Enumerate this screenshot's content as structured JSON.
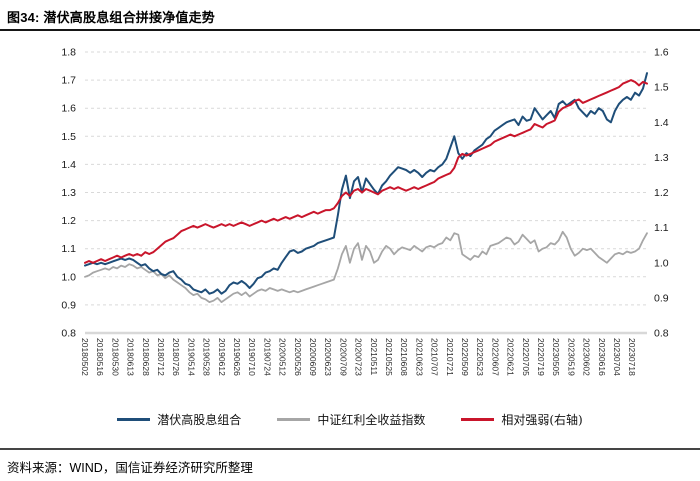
{
  "figure": {
    "title": "图34: 潜伏高股息组合拼接净值走势",
    "source": "资料来源：WIND，国信证券经济研究所整理"
  },
  "chart_data": {
    "type": "line",
    "title": "潜伏高股息组合拼接净值走势",
    "grid": "dashed-horizontal",
    "legend_position": "bottom",
    "left_axis": {
      "min": 0.8,
      "max": 1.8,
      "ticks": [
        "1.8",
        "1.7",
        "1.6",
        "1.5",
        "1.4",
        "1.3",
        "1.2",
        "1.1",
        "1.0",
        "0.9",
        "0.8"
      ]
    },
    "right_axis": {
      "min": 0.8,
      "max": 1.6,
      "ticks": [
        "1.6",
        "1.5",
        "1.4",
        "1.3",
        "1.2",
        "1.1",
        "1.0",
        "0.9",
        "0.8"
      ]
    },
    "x_tick_labels": [
      "20180502",
      "20180516",
      "20180530",
      "20180613",
      "20180628",
      "20180712",
      "20180726",
      "20190514",
      "20190528",
      "20190612",
      "20190626",
      "20190710",
      "20190724",
      "20200512",
      "20200526",
      "20200609",
      "20200623",
      "20200709",
      "20200723",
      "20210511",
      "20210525",
      "20210608",
      "20210623",
      "20210707",
      "20210721",
      "20220509",
      "20220523",
      "20220607",
      "20220621",
      "20220705",
      "20220719",
      "20230505",
      "20230519",
      "20230602",
      "20230616",
      "20230704",
      "20230718"
    ],
    "series": [
      {
        "name": "潜伏高股息组合",
        "color": "#1F4E79",
        "axis": "left",
        "width": 2,
        "values": [
          1.04,
          1.045,
          1.05,
          1.045,
          1.05,
          1.045,
          1.05,
          1.055,
          1.06,
          1.065,
          1.06,
          1.065,
          1.06,
          1.05,
          1.04,
          1.045,
          1.03,
          1.02,
          1.025,
          1.01,
          1.005,
          1.015,
          1.02,
          1.0,
          0.99,
          0.975,
          0.97,
          0.955,
          0.95,
          0.945,
          0.955,
          0.94,
          0.945,
          0.955,
          0.94,
          0.95,
          0.97,
          0.98,
          0.975,
          0.985,
          0.975,
          0.96,
          0.975,
          0.995,
          1.0,
          1.015,
          1.02,
          1.03,
          1.025,
          1.05,
          1.07,
          1.09,
          1.095,
          1.085,
          1.09,
          1.1,
          1.105,
          1.11,
          1.12,
          1.125,
          1.13,
          1.135,
          1.14,
          1.22,
          1.31,
          1.36,
          1.28,
          1.34,
          1.355,
          1.3,
          1.35,
          1.33,
          1.31,
          1.295,
          1.325,
          1.34,
          1.36,
          1.375,
          1.39,
          1.385,
          1.38,
          1.37,
          1.38,
          1.37,
          1.355,
          1.37,
          1.38,
          1.375,
          1.39,
          1.4,
          1.42,
          1.46,
          1.5,
          1.44,
          1.42,
          1.44,
          1.43,
          1.45,
          1.46,
          1.47,
          1.49,
          1.5,
          1.52,
          1.53,
          1.54,
          1.55,
          1.555,
          1.56,
          1.54,
          1.57,
          1.555,
          1.56,
          1.6,
          1.58,
          1.56,
          1.575,
          1.59,
          1.565,
          1.615,
          1.625,
          1.61,
          1.62,
          1.63,
          1.6,
          1.585,
          1.57,
          1.59,
          1.58,
          1.6,
          1.59,
          1.56,
          1.55,
          1.59,
          1.615,
          1.63,
          1.64,
          1.63,
          1.655,
          1.645,
          1.67,
          1.725
        ]
      },
      {
        "name": "中证红利全收益指数",
        "color": "#A6A6A6",
        "axis": "left",
        "width": 1.8,
        "values": [
          1.0,
          1.005,
          1.015,
          1.02,
          1.025,
          1.03,
          1.025,
          1.035,
          1.03,
          1.04,
          1.035,
          1.045,
          1.04,
          1.03,
          1.035,
          1.025,
          1.015,
          1.02,
          1.005,
          1.01,
          0.995,
          1.005,
          0.99,
          0.98,
          0.97,
          0.96,
          0.945,
          0.935,
          0.94,
          0.925,
          0.92,
          0.91,
          0.915,
          0.925,
          0.91,
          0.92,
          0.93,
          0.94,
          0.945,
          0.935,
          0.945,
          0.93,
          0.94,
          0.95,
          0.955,
          0.95,
          0.96,
          0.955,
          0.95,
          0.955,
          0.95,
          0.945,
          0.95,
          0.945,
          0.95,
          0.955,
          0.96,
          0.965,
          0.97,
          0.975,
          0.98,
          0.985,
          0.99,
          1.03,
          1.08,
          1.11,
          1.05,
          1.1,
          1.12,
          1.06,
          1.11,
          1.09,
          1.05,
          1.06,
          1.09,
          1.11,
          1.1,
          1.08,
          1.095,
          1.105,
          1.1,
          1.095,
          1.11,
          1.1,
          1.09,
          1.105,
          1.11,
          1.105,
          1.115,
          1.12,
          1.14,
          1.13,
          1.155,
          1.15,
          1.08,
          1.07,
          1.06,
          1.075,
          1.07,
          1.09,
          1.08,
          1.11,
          1.115,
          1.12,
          1.13,
          1.14,
          1.135,
          1.115,
          1.125,
          1.15,
          1.135,
          1.12,
          1.13,
          1.09,
          1.1,
          1.105,
          1.12,
          1.115,
          1.13,
          1.16,
          1.14,
          1.1,
          1.075,
          1.085,
          1.1,
          1.095,
          1.1,
          1.085,
          1.07,
          1.06,
          1.05,
          1.065,
          1.08,
          1.085,
          1.08,
          1.09,
          1.085,
          1.09,
          1.1,
          1.13,
          1.155
        ]
      },
      {
        "name": "相对强弱(右轴)",
        "color": "#C9152B",
        "axis": "right",
        "width": 2,
        "values": [
          1.0,
          1.005,
          1.0,
          1.005,
          1.01,
          1.005,
          1.01,
          1.015,
          1.02,
          1.015,
          1.02,
          1.025,
          1.02,
          1.025,
          1.02,
          1.03,
          1.025,
          1.03,
          1.04,
          1.05,
          1.06,
          1.065,
          1.07,
          1.08,
          1.09,
          1.095,
          1.1,
          1.105,
          1.1,
          1.105,
          1.11,
          1.105,
          1.1,
          1.105,
          1.11,
          1.105,
          1.11,
          1.105,
          1.11,
          1.115,
          1.11,
          1.105,
          1.11,
          1.115,
          1.12,
          1.115,
          1.12,
          1.125,
          1.12,
          1.125,
          1.13,
          1.125,
          1.13,
          1.135,
          1.13,
          1.135,
          1.14,
          1.145,
          1.14,
          1.145,
          1.15,
          1.15,
          1.155,
          1.17,
          1.19,
          1.2,
          1.19,
          1.205,
          1.21,
          1.2,
          1.21,
          1.205,
          1.2,
          1.195,
          1.205,
          1.21,
          1.215,
          1.21,
          1.215,
          1.21,
          1.205,
          1.21,
          1.215,
          1.21,
          1.215,
          1.22,
          1.225,
          1.23,
          1.24,
          1.245,
          1.25,
          1.255,
          1.27,
          1.3,
          1.31,
          1.305,
          1.31,
          1.315,
          1.32,
          1.325,
          1.33,
          1.335,
          1.345,
          1.35,
          1.355,
          1.36,
          1.365,
          1.36,
          1.365,
          1.37,
          1.375,
          1.38,
          1.395,
          1.39,
          1.385,
          1.395,
          1.4,
          1.405,
          1.43,
          1.44,
          1.445,
          1.45,
          1.46,
          1.465,
          1.455,
          1.46,
          1.465,
          1.47,
          1.475,
          1.48,
          1.485,
          1.49,
          1.495,
          1.5,
          1.51,
          1.515,
          1.52,
          1.515,
          1.505,
          1.515,
          1.51
        ]
      }
    ]
  }
}
